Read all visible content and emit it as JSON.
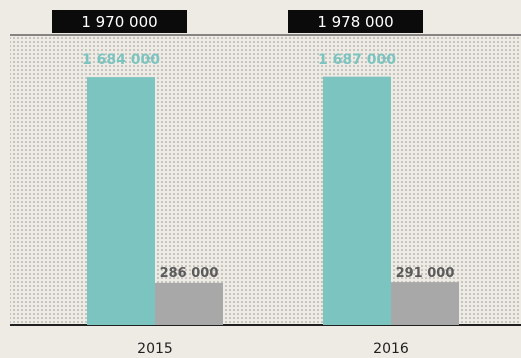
{
  "chart_data": {
    "type": "bar",
    "categories": [
      "2015",
      "2016"
    ],
    "totals": [
      "1970000",
      "1978000"
    ],
    "total_labels": [
      "1 970 000",
      "1 978 000"
    ],
    "series": [
      {
        "values": [
          1684000,
          1687000
        ],
        "labels": [
          "1 684 000",
          "1 687 000"
        ],
        "color": "#7cc4c0"
      },
      {
        "values": [
          286000,
          291000
        ],
        "labels": [
          "286 000",
          "291 000"
        ],
        "color": "#a7a8a7"
      }
    ],
    "ylim": [
      0,
      1970000
    ],
    "grid": false,
    "background_pattern": "dotted"
  },
  "colors": {
    "page_bg": "#eeeae4",
    "total_box_bg": "#0b0b0b",
    "total_box_text": "#ffffff",
    "axis_line": "#1f1f1f",
    "dot_color": "#8f8f8f",
    "label_dark": "#5b5b5b",
    "label_teal": "#7cc4c0"
  }
}
